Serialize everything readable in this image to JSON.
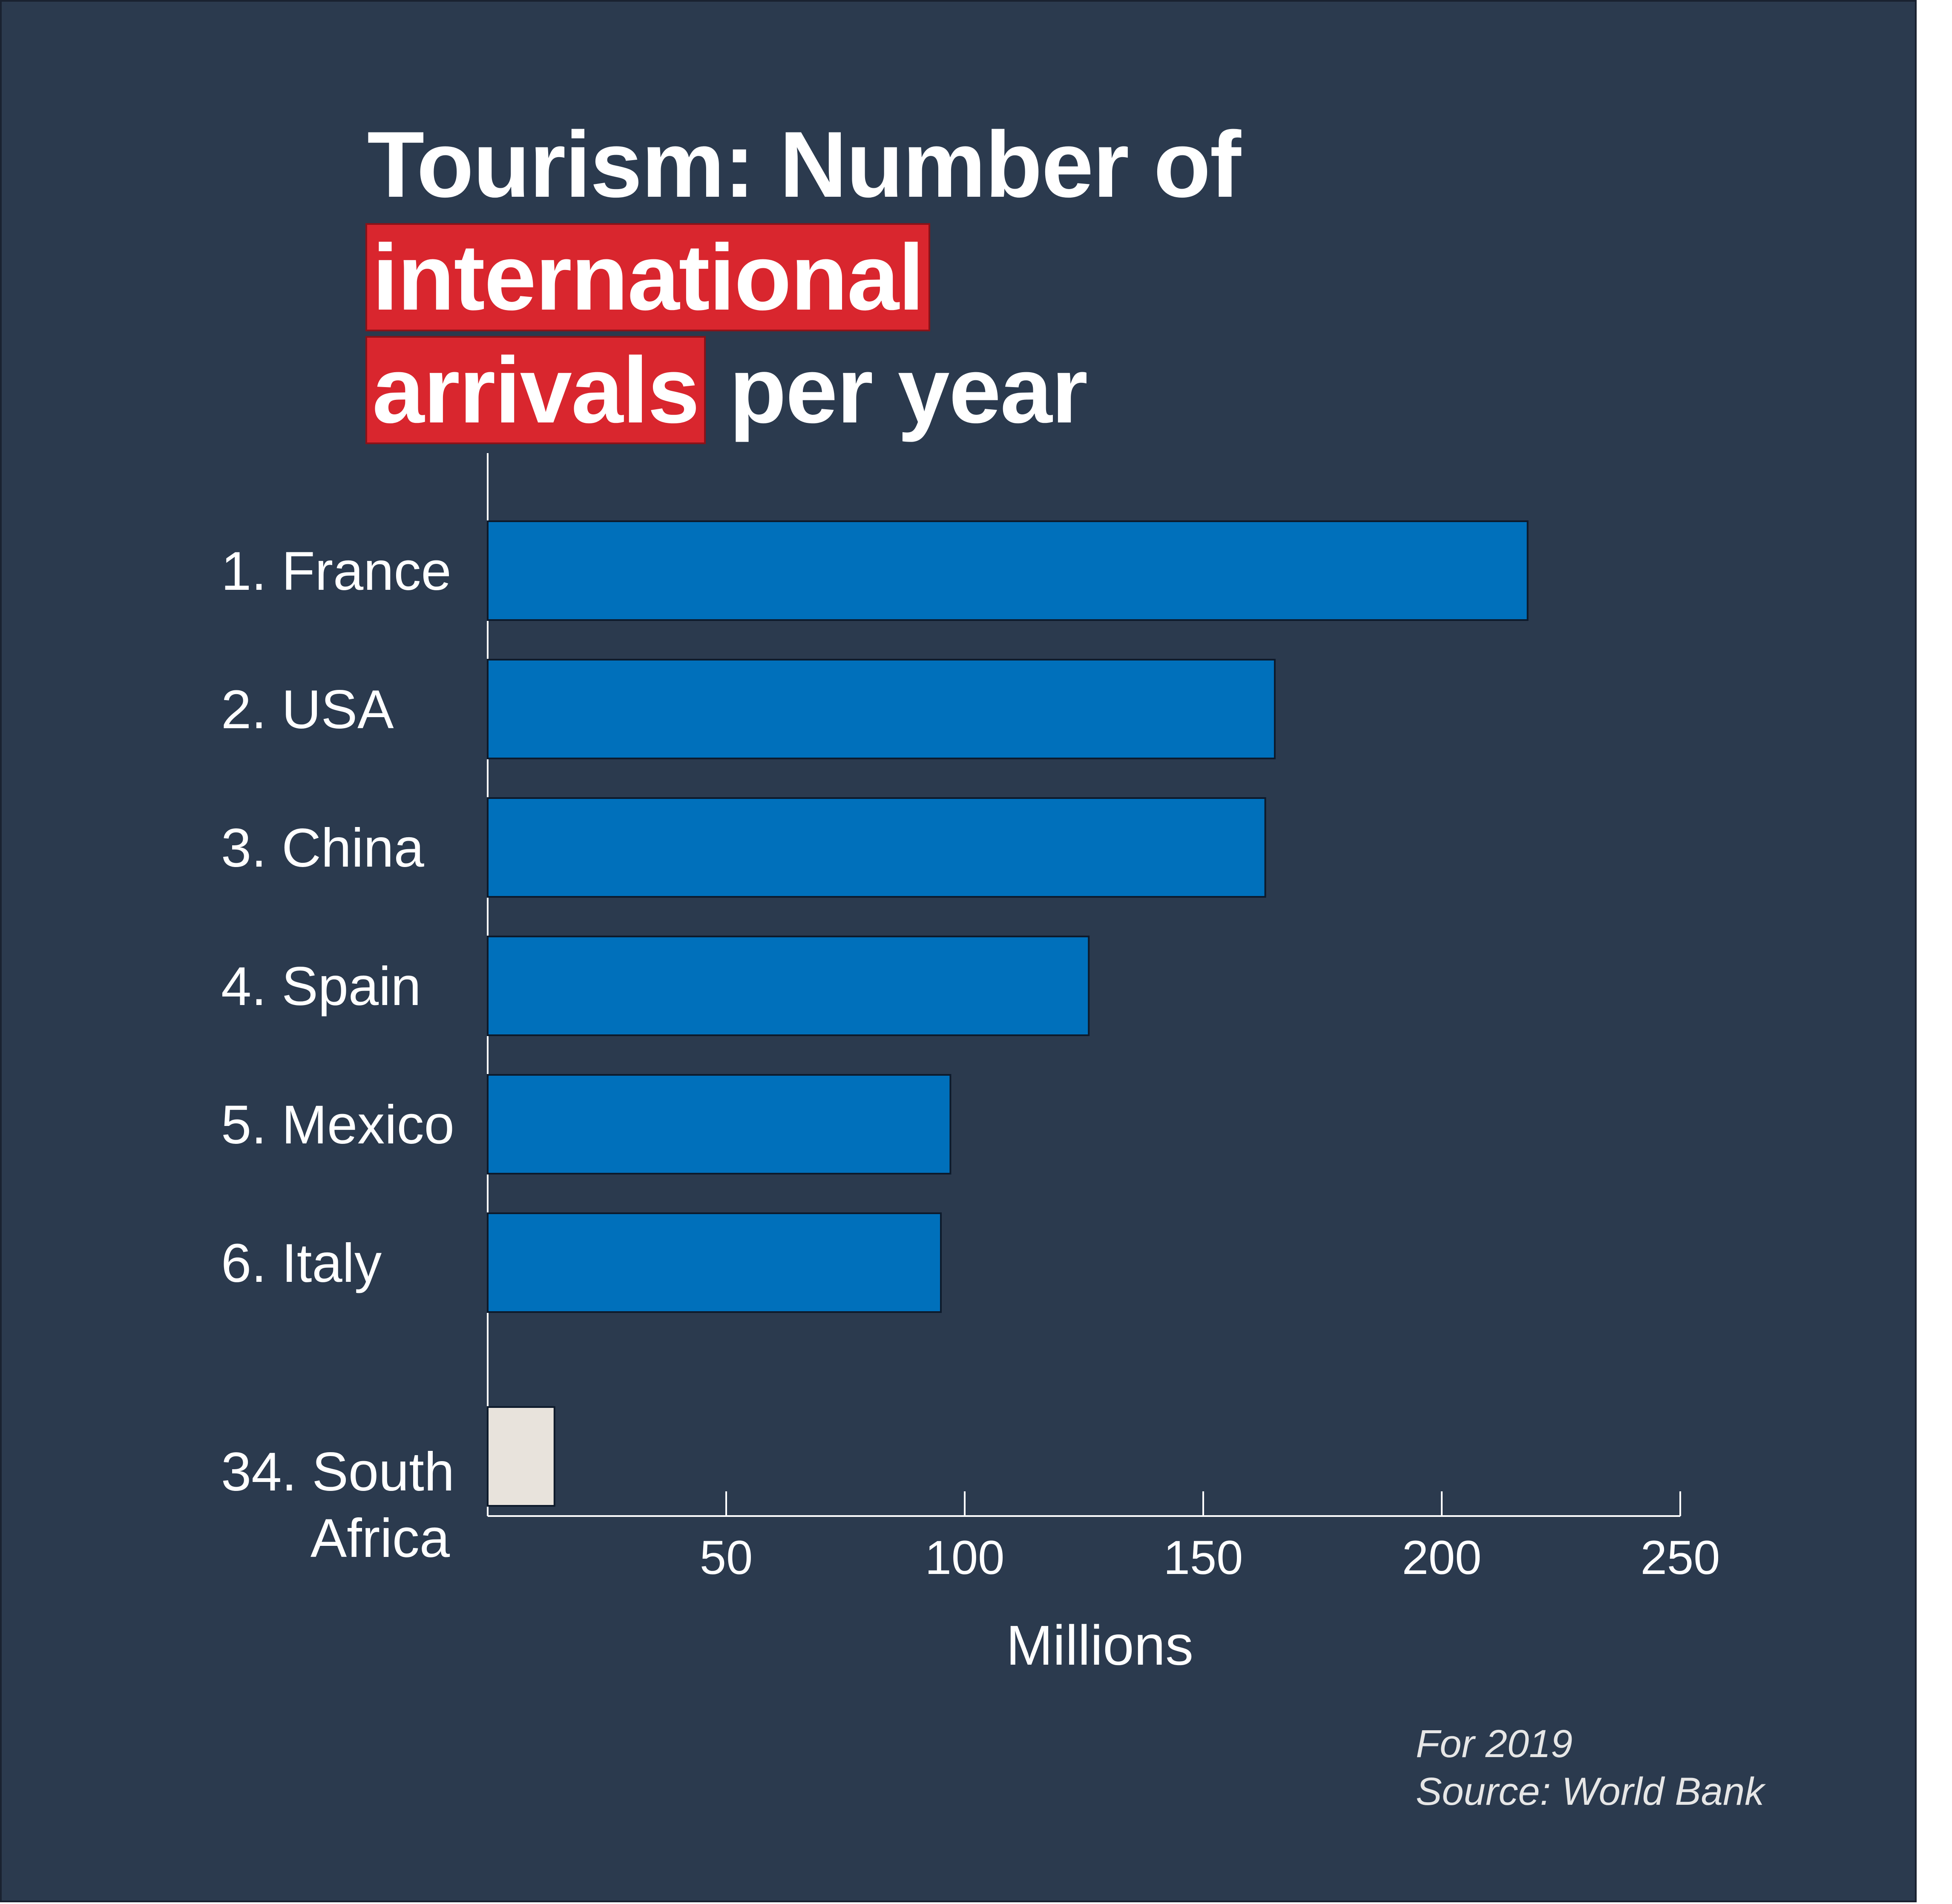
{
  "title": {
    "part1": "Tourism: Number of ",
    "highlight1": "international",
    "highlight2": "arrivals",
    "part2": " per year"
  },
  "colors": {
    "background": "#2b3a4e",
    "bar_primary": "#0070bb",
    "bar_secondary": "#e8e3dc",
    "highlight": "#d9262e"
  },
  "chart_data": {
    "type": "bar",
    "orientation": "horizontal",
    "title": "Tourism: Number of international arrivals per year",
    "categories": [
      "1. France",
      "2. USA",
      "3. China",
      "4. Spain",
      "5. Mexico",
      "6. Italy",
      "34. South Africa"
    ],
    "values": [
      218,
      165,
      163,
      126,
      97,
      95,
      14
    ],
    "highlight_category": "34. South Africa",
    "xlabel": "Millions",
    "ylabel": "",
    "xlim": [
      0,
      250
    ],
    "xticks": [
      50,
      100,
      150,
      200,
      250
    ],
    "grid": false,
    "legend": "none"
  },
  "footnote": {
    "line1": "For 2019",
    "line2": "Source: World Bank"
  }
}
